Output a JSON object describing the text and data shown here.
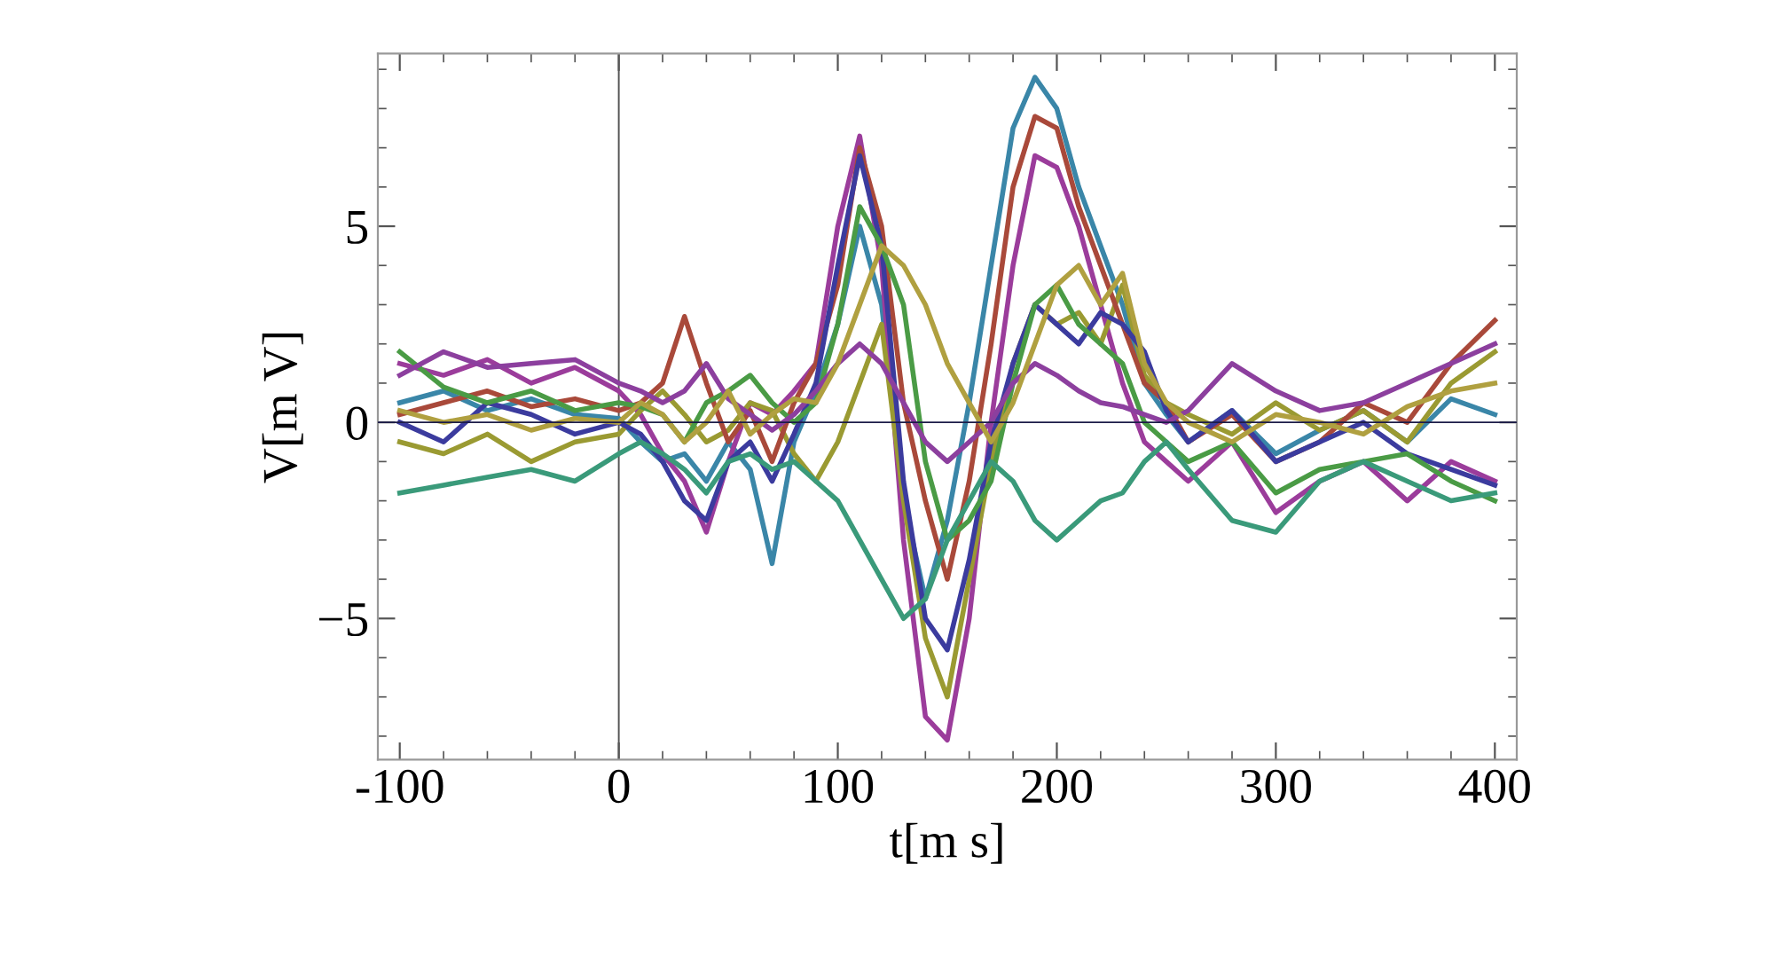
{
  "chart_data": {
    "type": "line",
    "xlabel": "t[m s]",
    "ylabel": "V[m V]",
    "x": [
      -100,
      -80,
      -60,
      -40,
      -20,
      0,
      10,
      20,
      30,
      40,
      50,
      60,
      70,
      80,
      90,
      100,
      110,
      120,
      130,
      140,
      150,
      160,
      170,
      180,
      190,
      200,
      210,
      220,
      230,
      240,
      250,
      260,
      280,
      300,
      320,
      340,
      360,
      380,
      400
    ],
    "xlim": [
      -110,
      410
    ],
    "xticks": [
      -100,
      0,
      100,
      200,
      300,
      400
    ],
    "ylim": [
      -8.6,
      9.4
    ],
    "yticks": [
      {
        "value": -5,
        "label": "−5"
      },
      0,
      5
    ],
    "grid": false,
    "legend": false,
    "marker": "none",
    "line_style": "solid",
    "ref_lines": [
      {
        "axis": "x",
        "value": 0,
        "color": "#555555"
      },
      {
        "axis": "y",
        "value": 0,
        "color": "#1c1c48"
      }
    ],
    "series": [
      {
        "color": "#3a86a8",
        "values": [
          0.5,
          0.8,
          0.3,
          0.6,
          0.2,
          0.1,
          -0.5,
          -1.0,
          -0.8,
          -1.5,
          -0.5,
          -1.2,
          -3.6,
          -0.5,
          0.8,
          2.5,
          5.0,
          3.0,
          -2.0,
          -4.5,
          -2.5,
          0.5,
          4.0,
          7.5,
          8.8,
          8.0,
          6.0,
          4.5,
          3.0,
          1.0,
          0.2,
          -0.5,
          0.3,
          -0.8,
          -0.2,
          0.3,
          -0.5,
          0.6,
          0.2
        ]
      },
      {
        "color": "#9b3c9b",
        "values": [
          1.5,
          1.2,
          1.6,
          1.0,
          1.4,
          0.8,
          0.2,
          -0.8,
          -1.5,
          -2.8,
          -1.0,
          0.5,
          0.2,
          0.8,
          1.5,
          5.0,
          7.3,
          4.0,
          -3.0,
          -7.5,
          -8.1,
          -5.0,
          0.0,
          4.0,
          6.8,
          6.5,
          5.0,
          3.0,
          1.0,
          -0.5,
          -1.0,
          -1.5,
          -0.5,
          -2.3,
          -1.5,
          -1.0,
          -2.0,
          -1.0,
          -1.5
        ]
      },
      {
        "color": "#9a9a32",
        "values": [
          -0.5,
          -0.8,
          -0.3,
          -1.0,
          -0.5,
          -0.3,
          0.3,
          0.8,
          0.2,
          -0.5,
          -0.2,
          0.5,
          0.3,
          -0.8,
          -1.5,
          -0.5,
          1.0,
          2.5,
          -2.0,
          -5.5,
          -7.0,
          -4.0,
          -1.0,
          1.5,
          3.0,
          2.5,
          2.8,
          2.0,
          3.5,
          1.2,
          0.5,
          0.2,
          -0.3,
          0.5,
          -0.2,
          0.3,
          -0.5,
          1.0,
          1.8
        ]
      },
      {
        "color": "#a9493a",
        "values": [
          0.2,
          0.5,
          0.8,
          0.4,
          0.6,
          0.3,
          0.5,
          1.0,
          2.7,
          1.0,
          -0.5,
          0.3,
          -1.0,
          0.5,
          1.5,
          3.5,
          7.0,
          5.0,
          0.5,
          -2.0,
          -4.0,
          -1.5,
          2.0,
          6.0,
          7.8,
          7.5,
          5.5,
          4.0,
          2.5,
          1.0,
          0.5,
          -0.5,
          0.2,
          -1.0,
          -0.5,
          0.5,
          0.0,
          1.5,
          2.6
        ]
      },
      {
        "color": "#3b3b9e",
        "values": [
          0.0,
          -0.5,
          0.5,
          0.2,
          -0.3,
          0.0,
          -0.3,
          -1.0,
          -2.0,
          -2.5,
          -1.0,
          -0.5,
          -1.5,
          -0.3,
          1.0,
          4.0,
          6.8,
          4.5,
          -1.5,
          -5.0,
          -5.8,
          -3.5,
          -0.5,
          1.5,
          3.0,
          2.5,
          2.0,
          2.8,
          2.5,
          1.8,
          0.3,
          -0.5,
          0.3,
          -1.0,
          -0.5,
          0.0,
          -0.8,
          -1.2,
          -1.6
        ]
      },
      {
        "color": "#4a9b45",
        "values": [
          1.8,
          0.9,
          0.5,
          0.8,
          0.3,
          0.5,
          0.4,
          0.2,
          -0.5,
          0.5,
          0.8,
          1.2,
          0.5,
          0.0,
          0.5,
          2.5,
          5.5,
          4.5,
          3.0,
          -1.0,
          -3.0,
          -2.5,
          -1.5,
          1.0,
          3.0,
          3.5,
          2.5,
          2.0,
          1.5,
          0.0,
          -0.5,
          -1.0,
          -0.5,
          -1.8,
          -1.2,
          -1.0,
          -0.8,
          -1.5,
          -2.0
        ]
      },
      {
        "color": "#8c3f9e",
        "values": [
          1.2,
          1.8,
          1.4,
          1.5,
          1.6,
          1.0,
          0.8,
          0.5,
          0.8,
          1.5,
          0.6,
          0.2,
          -0.2,
          0.2,
          0.8,
          1.5,
          2.0,
          1.5,
          0.5,
          -0.5,
          -1.0,
          -0.5,
          0.0,
          1.0,
          1.5,
          1.2,
          0.8,
          0.5,
          0.4,
          0.2,
          0.0,
          0.3,
          1.5,
          0.8,
          0.3,
          0.5,
          1.0,
          1.5,
          2.0
        ]
      },
      {
        "color": "#3a9a7a",
        "values": [
          -1.8,
          -1.6,
          -1.4,
          -1.2,
          -1.5,
          -0.8,
          -0.5,
          -0.8,
          -1.2,
          -1.8,
          -1.0,
          -0.8,
          -1.2,
          -1.0,
          -1.5,
          -2.0,
          -3.0,
          -4.0,
          -5.0,
          -4.5,
          -3.0,
          -2.0,
          -1.0,
          -1.5,
          -2.5,
          -3.0,
          -2.5,
          -2.0,
          -1.8,
          -1.0,
          -0.5,
          -1.2,
          -2.5,
          -2.8,
          -1.5,
          -1.0,
          -1.5,
          -2.0,
          -1.8
        ]
      },
      {
        "color": "#b0a040",
        "values": [
          0.3,
          0.0,
          0.2,
          -0.2,
          0.1,
          0.0,
          0.5,
          0.2,
          -0.5,
          0.0,
          0.8,
          -0.3,
          0.2,
          0.6,
          0.5,
          1.5,
          3.0,
          4.5,
          4.0,
          3.0,
          1.5,
          0.5,
          -0.5,
          0.5,
          2.0,
          3.5,
          4.0,
          3.0,
          3.8,
          1.5,
          0.5,
          0.0,
          -0.5,
          0.2,
          0.0,
          -0.3,
          0.4,
          0.8,
          1.0
        ]
      }
    ]
  }
}
